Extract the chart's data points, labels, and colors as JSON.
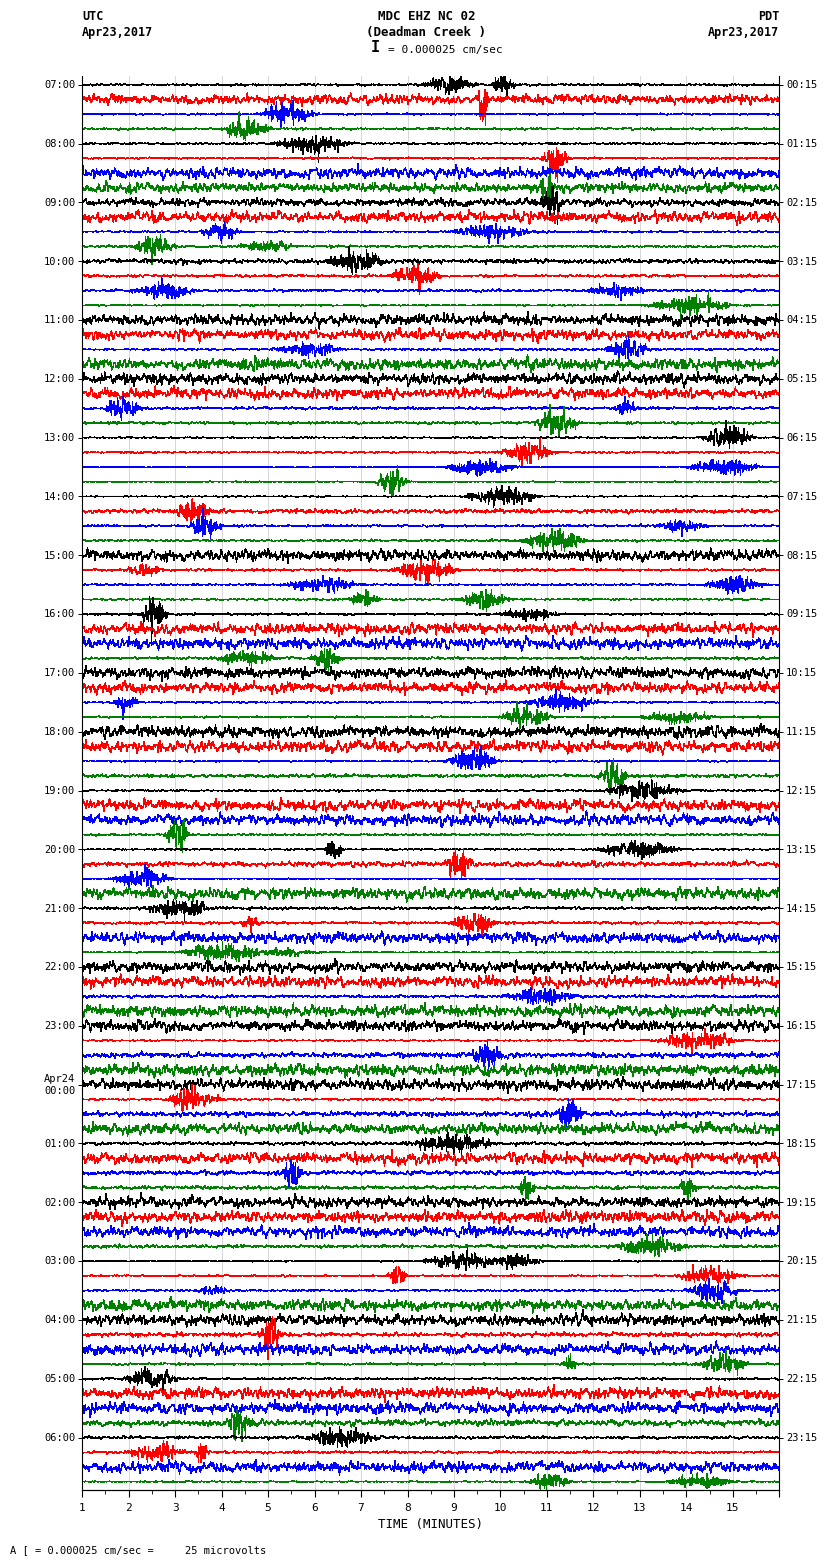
{
  "title_line1": "MDC EHZ NC 02",
  "title_line2": "(Deadman Creek )",
  "title_line3": "I = 0.000025 cm/sec",
  "left_top_label": "UTC",
  "left_date_label": "Apr23,2017",
  "right_top_label": "PDT",
  "right_date_label": "Apr23,2017",
  "bottom_label": "TIME (MINUTES)",
  "bottom_note": "A [ = 0.000025 cm/sec =     25 microvolts",
  "utc_labels": [
    "07:00",
    "08:00",
    "09:00",
    "10:00",
    "11:00",
    "12:00",
    "13:00",
    "14:00",
    "15:00",
    "16:00",
    "17:00",
    "18:00",
    "19:00",
    "20:00",
    "21:00",
    "22:00",
    "23:00",
    "Apr24\n00:00",
    "01:00",
    "02:00",
    "03:00",
    "04:00",
    "05:00",
    "06:00"
  ],
  "pdt_labels": [
    "00:15",
    "01:15",
    "02:15",
    "03:15",
    "04:15",
    "05:15",
    "06:15",
    "07:15",
    "08:15",
    "09:15",
    "10:15",
    "11:15",
    "12:15",
    "13:15",
    "14:15",
    "15:15",
    "16:15",
    "17:15",
    "18:15",
    "19:15",
    "20:15",
    "21:15",
    "22:15",
    "23:15"
  ],
  "num_traces": 96,
  "traces_per_hour": 4,
  "num_hours": 24,
  "minutes": 15,
  "colors_cycle": [
    "black",
    "red",
    "blue",
    "green"
  ],
  "background_color": "#ffffff",
  "grid_color": "#888888",
  "font_family": "monospace"
}
